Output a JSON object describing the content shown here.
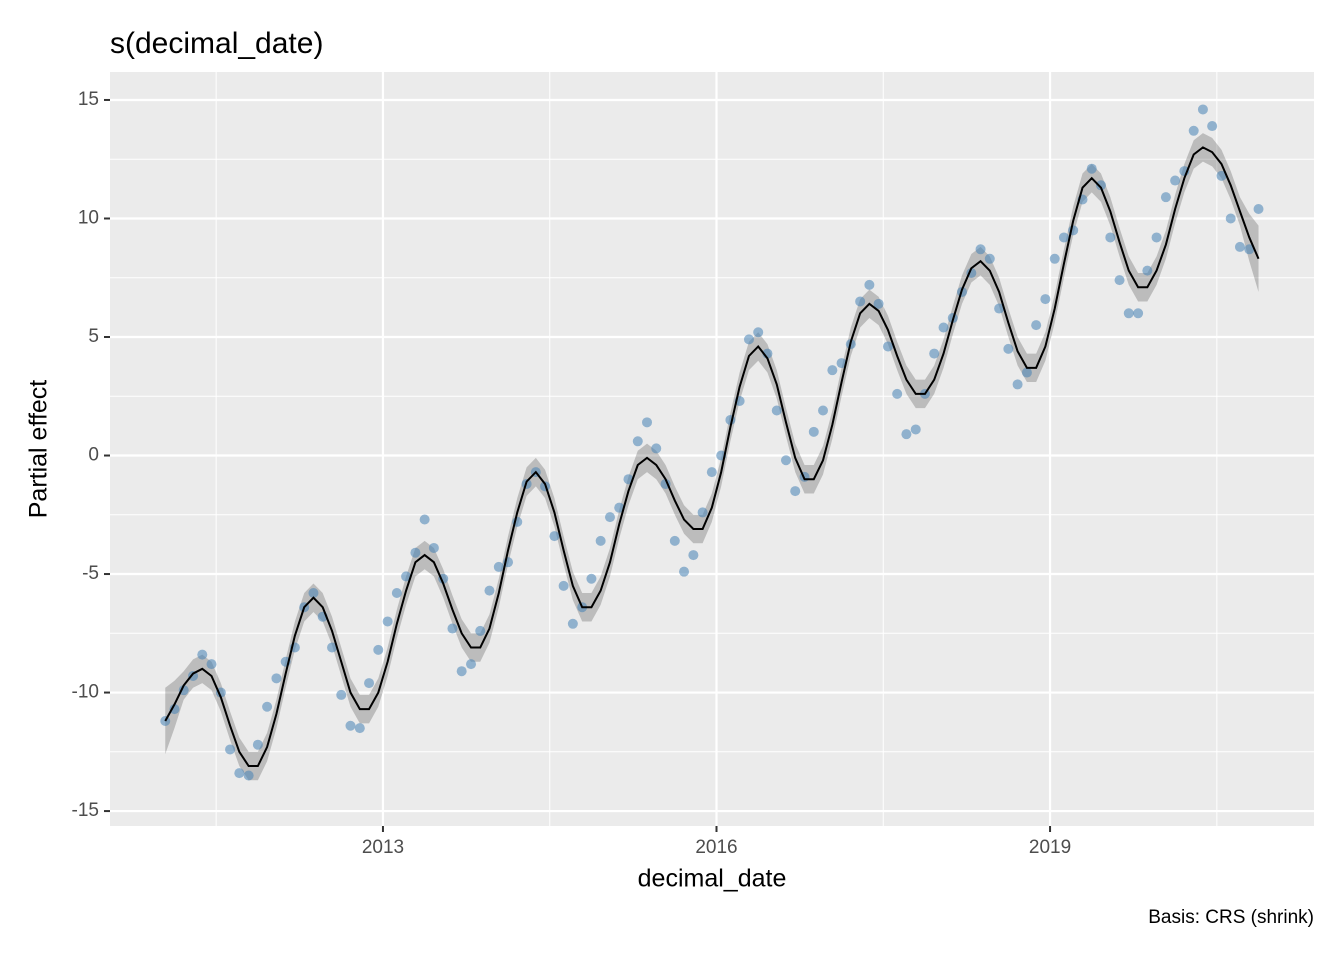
{
  "chart_data": {
    "type": "line",
    "title": "s(decimal_date)",
    "caption": "Basis: CRS (shrink)",
    "x_label": "decimal_date",
    "y_label": "Partial effect",
    "x": [
      2011.042,
      2011.125,
      2011.208,
      2011.292,
      2011.375,
      2011.458,
      2011.542,
      2011.625,
      2011.708,
      2011.792,
      2011.875,
      2011.958,
      2012.042,
      2012.125,
      2012.208,
      2012.292,
      2012.375,
      2012.458,
      2012.542,
      2012.625,
      2012.708,
      2012.792,
      2012.875,
      2012.958,
      2013.042,
      2013.125,
      2013.208,
      2013.292,
      2013.375,
      2013.458,
      2013.542,
      2013.625,
      2013.708,
      2013.792,
      2013.875,
      2013.958,
      2014.042,
      2014.125,
      2014.208,
      2014.292,
      2014.375,
      2014.458,
      2014.542,
      2014.625,
      2014.708,
      2014.792,
      2014.875,
      2014.958,
      2015.042,
      2015.125,
      2015.208,
      2015.292,
      2015.375,
      2015.458,
      2015.542,
      2015.625,
      2015.708,
      2015.792,
      2015.875,
      2015.958,
      2016.042,
      2016.125,
      2016.208,
      2016.292,
      2016.375,
      2016.458,
      2016.542,
      2016.625,
      2016.708,
      2016.792,
      2016.875,
      2016.958,
      2017.042,
      2017.125,
      2017.208,
      2017.292,
      2017.375,
      2017.458,
      2017.542,
      2017.625,
      2017.708,
      2017.792,
      2017.875,
      2017.958,
      2018.042,
      2018.125,
      2018.208,
      2018.292,
      2018.375,
      2018.458,
      2018.542,
      2018.625,
      2018.708,
      2018.792,
      2018.875,
      2018.958,
      2019.042,
      2019.125,
      2019.208,
      2019.292,
      2019.375,
      2019.458,
      2019.542,
      2019.625,
      2019.708,
      2019.792,
      2019.875,
      2019.958,
      2020.042,
      2020.125,
      2020.208,
      2020.292,
      2020.375,
      2020.458,
      2020.542,
      2020.625,
      2020.708,
      2020.792,
      2020.875
    ],
    "values": [
      -11.2,
      -10.5,
      -9.7,
      -9.2,
      -9.0,
      -9.3,
      -10.2,
      -11.4,
      -12.5,
      -13.1,
      -13.1,
      -12.3,
      -10.9,
      -9.2,
      -7.6,
      -6.4,
      -6.0,
      -6.4,
      -7.4,
      -8.7,
      -10.0,
      -10.7,
      -10.7,
      -10.0,
      -8.7,
      -7.1,
      -5.7,
      -4.5,
      -4.2,
      -4.5,
      -5.4,
      -6.5,
      -7.5,
      -8.1,
      -8.1,
      -7.3,
      -5.8,
      -4.0,
      -2.4,
      -1.1,
      -0.7,
      -1.2,
      -2.4,
      -4.0,
      -5.5,
      -6.4,
      -6.4,
      -5.7,
      -4.5,
      -2.9,
      -1.5,
      -0.4,
      -0.1,
      -0.4,
      -1.0,
      -1.9,
      -2.7,
      -3.1,
      -3.1,
      -2.2,
      -0.7,
      1.2,
      2.9,
      4.2,
      4.6,
      4.1,
      3.0,
      1.4,
      -0.1,
      -1.0,
      -1.0,
      -0.2,
      1.3,
      3.1,
      4.8,
      6.0,
      6.4,
      6.1,
      5.3,
      4.2,
      3.2,
      2.6,
      2.6,
      3.2,
      4.3,
      5.7,
      7.0,
      7.9,
      8.2,
      7.8,
      6.9,
      5.6,
      4.4,
      3.7,
      3.7,
      4.6,
      6.2,
      8.1,
      9.9,
      11.3,
      11.7,
      11.3,
      10.3,
      9.0,
      7.8,
      7.1,
      7.1,
      7.8,
      8.9,
      10.4,
      11.7,
      12.7,
      13.0,
      12.8,
      12.3,
      11.4,
      10.3,
      9.2,
      8.3
    ],
    "lower": [
      -12.6,
      -11.5,
      -10.3,
      -9.8,
      -9.6,
      -9.9,
      -10.8,
      -12.0,
      -13.1,
      -13.7,
      -13.7,
      -12.9,
      -11.5,
      -9.8,
      -8.2,
      -7.0,
      -6.6,
      -7.0,
      -8.0,
      -9.3,
      -10.6,
      -11.3,
      -11.3,
      -10.6,
      -9.3,
      -7.7,
      -6.3,
      -5.1,
      -4.8,
      -5.1,
      -6.0,
      -7.1,
      -8.1,
      -8.7,
      -8.7,
      -7.9,
      -6.4,
      -4.6,
      -3.0,
      -1.7,
      -1.3,
      -1.8,
      -3.0,
      -4.6,
      -6.1,
      -7.0,
      -7.0,
      -6.3,
      -5.1,
      -3.5,
      -2.1,
      -1.0,
      -0.7,
      -1.0,
      -1.6,
      -2.5,
      -3.3,
      -3.7,
      -3.7,
      -2.8,
      -1.3,
      0.6,
      2.3,
      3.6,
      4.0,
      3.5,
      2.4,
      0.8,
      -0.7,
      -1.6,
      -1.6,
      -0.8,
      0.7,
      2.5,
      4.2,
      5.4,
      5.8,
      5.5,
      4.7,
      3.6,
      2.6,
      2.0,
      2.0,
      2.6,
      3.7,
      5.1,
      6.4,
      7.3,
      7.6,
      7.2,
      6.3,
      5.0,
      3.8,
      3.1,
      3.1,
      4.0,
      5.6,
      7.5,
      9.3,
      10.7,
      11.1,
      10.7,
      9.7,
      8.4,
      7.2,
      6.5,
      6.5,
      7.2,
      8.3,
      9.8,
      11.1,
      12.1,
      12.4,
      12.2,
      11.7,
      10.8,
      9.7,
      8.2,
      6.9
    ],
    "upper": [
      -9.8,
      -9.5,
      -9.1,
      -8.6,
      -8.4,
      -8.7,
      -9.6,
      -10.8,
      -11.9,
      -12.5,
      -12.5,
      -11.7,
      -10.3,
      -8.6,
      -7.0,
      -5.8,
      -5.4,
      -5.8,
      -6.8,
      -8.1,
      -9.4,
      -10.1,
      -10.1,
      -9.4,
      -8.1,
      -6.5,
      -5.1,
      -3.9,
      -3.6,
      -3.9,
      -4.8,
      -5.9,
      -6.9,
      -7.5,
      -7.5,
      -6.7,
      -5.2,
      -3.4,
      -1.8,
      -0.5,
      -0.1,
      -0.6,
      -1.8,
      -3.4,
      -4.9,
      -5.8,
      -5.8,
      -5.1,
      -3.9,
      -2.3,
      -0.9,
      0.2,
      0.5,
      0.2,
      -0.4,
      -1.3,
      -2.1,
      -2.5,
      -2.5,
      -1.6,
      -0.1,
      1.8,
      3.5,
      4.8,
      5.2,
      4.7,
      3.6,
      2.0,
      0.5,
      -0.4,
      -0.4,
      0.4,
      1.9,
      3.7,
      5.4,
      6.6,
      7.0,
      6.7,
      5.9,
      4.8,
      3.8,
      3.2,
      3.2,
      3.8,
      4.9,
      6.3,
      7.6,
      8.5,
      8.8,
      8.4,
      7.5,
      6.2,
      5.0,
      4.3,
      4.3,
      5.2,
      6.8,
      8.7,
      10.5,
      11.9,
      12.3,
      11.9,
      10.9,
      9.6,
      8.4,
      7.7,
      7.7,
      8.4,
      9.5,
      11.0,
      12.3,
      13.3,
      13.6,
      13.4,
      12.9,
      12.0,
      10.9,
      10.2,
      9.7
    ],
    "residuals": [
      -11.2,
      -10.7,
      -9.9,
      -9.3,
      -8.4,
      -8.8,
      -10.0,
      -12.4,
      -13.4,
      -13.5,
      -12.2,
      -10.6,
      -9.4,
      -8.7,
      -8.1,
      -6.4,
      -5.8,
      -6.8,
      -8.1,
      -10.1,
      -11.4,
      -11.5,
      -9.6,
      -8.2,
      -7.0,
      -5.8,
      -5.1,
      -4.1,
      -2.7,
      -3.9,
      -5.2,
      -7.3,
      -9.1,
      -8.8,
      -7.4,
      -5.7,
      -4.7,
      -4.5,
      -2.8,
      -1.2,
      -0.7,
      -1.3,
      -3.4,
      -5.5,
      -7.1,
      -6.4,
      -5.2,
      -3.6,
      -2.6,
      -2.2,
      -1.0,
      0.6,
      1.4,
      0.3,
      -1.2,
      -3.6,
      -4.9,
      -4.2,
      -2.4,
      -0.7,
      0.0,
      1.5,
      2.3,
      4.9,
      5.2,
      4.3,
      1.9,
      -0.2,
      -1.5,
      -0.9,
      1.0,
      1.9,
      3.6,
      3.9,
      4.7,
      6.5,
      7.2,
      6.4,
      4.6,
      2.6,
      0.9,
      1.1,
      2.6,
      4.3,
      5.4,
      5.8,
      6.9,
      7.7,
      8.7,
      8.3,
      6.2,
      4.5,
      3.0,
      3.5,
      5.5,
      6.6,
      8.3,
      9.2,
      9.5,
      10.8,
      12.1,
      11.4,
      9.2,
      7.4,
      6.0,
      6.0,
      7.8,
      9.2,
      10.9,
      11.6,
      12.0,
      13.7,
      14.6,
      13.9,
      11.8,
      10.0,
      8.8,
      8.7,
      10.4
    ],
    "line_color": "#000000",
    "band_color": "#000000",
    "point_color": "#4682b4",
    "xlim": [
      2010.545,
      2021.374
    ],
    "ylim": [
      -15.63,
      16.18
    ],
    "xticks": [
      2013,
      2016,
      2019
    ],
    "yticks": [
      -15,
      -10,
      -5,
      0,
      5,
      10,
      15
    ],
    "minor_xticks": [
      2011.5,
      2014.5,
      2017.5,
      2020.5
    ],
    "minor_yticks": [
      -12.5,
      -7.5,
      -2.5,
      2.5,
      7.5,
      12.5
    ],
    "grid": true
  }
}
